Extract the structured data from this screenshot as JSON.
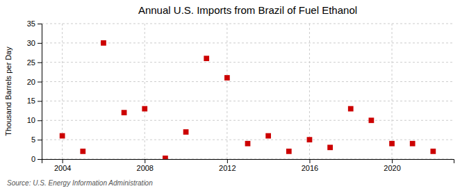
{
  "chart_data": {
    "type": "scatter",
    "title": "Annual U.S. Imports from Brazil of Fuel Ethanol",
    "ylabel": "Thousand Barrels per Day",
    "annotations": [
      "Source: U.S. Energy Information Administration"
    ],
    "x": [
      2004,
      2005,
      2006,
      2007,
      2008,
      2009,
      2010,
      2011,
      2012,
      2013,
      2014,
      2015,
      2016,
      2017,
      2018,
      2019,
      2020,
      2021,
      2022
    ],
    "values": [
      6,
      2,
      30,
      12,
      13,
      0.2,
      7,
      26,
      21,
      4,
      6,
      2,
      5,
      3,
      13,
      10,
      4,
      4,
      2
    ],
    "color": "#cc0000",
    "marker": "square",
    "xlim": [
      2003,
      2023
    ],
    "ylim": [
      0,
      35
    ],
    "xticks": [
      2004,
      2008,
      2012,
      2016,
      2020
    ],
    "yticks": [
      0,
      5,
      10,
      15,
      20,
      25,
      30,
      35
    ],
    "grid": true
  }
}
